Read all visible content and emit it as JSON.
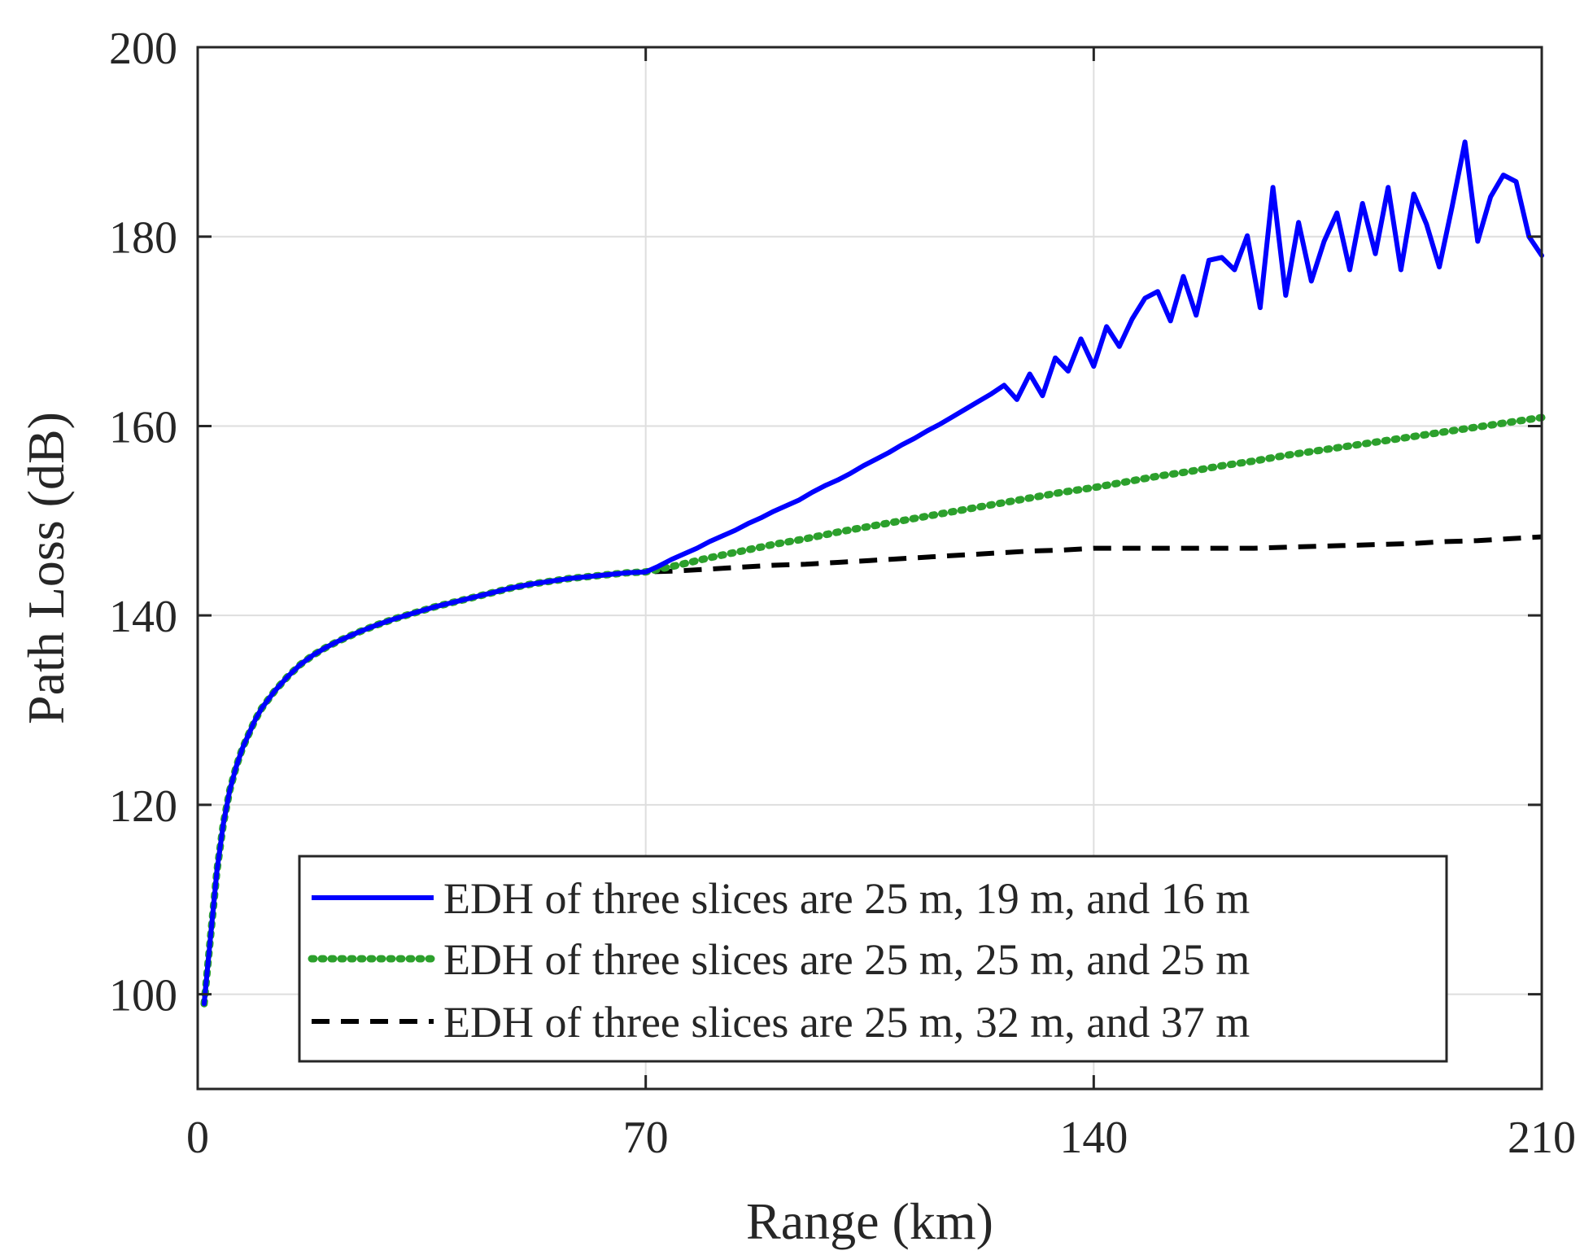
{
  "chart_data": {
    "type": "line",
    "xlabel": "Range (km)",
    "ylabel": "Path Loss (dB)",
    "xlim": [
      0,
      210
    ],
    "ylim": [
      90,
      200
    ],
    "xticks": [
      0,
      70,
      140,
      210
    ],
    "yticks": [
      100,
      120,
      140,
      160,
      180,
      200
    ],
    "xtick_labels": [
      "0",
      "70",
      "140",
      "210"
    ],
    "ytick_labels": [
      "100",
      "120",
      "140",
      "160",
      "180",
      "200"
    ],
    "grid": true,
    "legend_position": "bottom-right",
    "series": [
      {
        "name": "EDH of three slices are 25 m, 19 m, and 16 m",
        "color": "#0000ff",
        "style": "solid",
        "x": [
          1,
          2,
          3,
          4,
          5,
          6,
          7,
          8,
          9,
          10,
          12,
          14,
          16,
          18,
          20,
          22,
          25,
          28,
          31,
          34,
          37,
          40,
          43,
          46,
          49,
          52,
          55,
          58,
          61,
          64,
          67,
          70,
          72,
          74,
          76,
          78,
          80,
          82,
          84,
          86,
          88,
          90,
          92,
          94,
          96,
          98,
          100,
          102,
          104,
          106,
          108,
          110,
          112,
          114,
          116,
          118,
          120,
          122,
          124,
          126,
          128,
          130,
          132,
          134,
          136,
          138,
          140,
          142,
          144,
          146,
          148,
          150,
          152,
          154,
          156,
          158,
          160,
          162,
          164,
          166,
          168,
          170,
          172,
          174,
          176,
          178,
          180,
          182,
          184,
          186,
          188,
          190,
          192,
          194,
          196,
          198,
          200,
          202,
          204,
          206,
          208,
          210
        ],
        "y": [
          99,
          106,
          113,
          118,
          121.5,
          124,
          126,
          127.5,
          129,
          130.2,
          132,
          133.5,
          134.8,
          135.8,
          136.6,
          137.3,
          138.2,
          139,
          139.7,
          140.3,
          140.9,
          141.4,
          141.9,
          142.4,
          142.9,
          143.3,
          143.6,
          143.9,
          144.1,
          144.3,
          144.5,
          144.6,
          145.2,
          145.9,
          146.5,
          147.1,
          147.8,
          148.4,
          149,
          149.7,
          150.3,
          151,
          151.6,
          152.2,
          153,
          153.7,
          154.3,
          155,
          155.8,
          156.5,
          157.2,
          158,
          158.7,
          159.5,
          160.2,
          161,
          161.8,
          162.6,
          163.4,
          164.3,
          162.8,
          165.5,
          163.2,
          167.2,
          165.8,
          169.2,
          166.3,
          170.5,
          168.4,
          171.3,
          173.5,
          174.2,
          171.1,
          175.8,
          171.7,
          177.5,
          177.8,
          176.5,
          180.1,
          172.5,
          185.2,
          173.8,
          181.5,
          175.3,
          179.5,
          182.5,
          176.5,
          183.5,
          178.2,
          185.2,
          176.5,
          184.5,
          181.3,
          176.8,
          183.2,
          190,
          179.5,
          184.2,
          186.5,
          185.8,
          180,
          178
        ]
      },
      {
        "name": "EDH of three slices are 25 m, 25 m, and 25 m",
        "color": "#2ca02c",
        "style": "dotted",
        "x": [
          1,
          2,
          3,
          4,
          5,
          6,
          7,
          8,
          9,
          10,
          12,
          14,
          16,
          18,
          20,
          22,
          25,
          28,
          31,
          34,
          37,
          40,
          43,
          46,
          49,
          52,
          55,
          58,
          61,
          64,
          67,
          70,
          75,
          80,
          85,
          90,
          95,
          100,
          105,
          110,
          115,
          120,
          125,
          130,
          135,
          140,
          145,
          150,
          155,
          160,
          165,
          170,
          175,
          180,
          185,
          190,
          195,
          200,
          205,
          210
        ],
        "y": [
          99,
          106,
          113,
          118,
          121.5,
          124,
          126,
          127.5,
          129,
          130.2,
          132,
          133.5,
          134.8,
          135.8,
          136.6,
          137.3,
          138.2,
          139,
          139.7,
          140.3,
          140.9,
          141.4,
          141.9,
          142.4,
          142.9,
          143.3,
          143.6,
          143.9,
          144.1,
          144.3,
          144.5,
          144.6,
          145.3,
          146.1,
          146.8,
          147.5,
          148.1,
          148.8,
          149.4,
          150,
          150.6,
          151.2,
          151.8,
          152.4,
          153,
          153.5,
          154.1,
          154.7,
          155.2,
          155.8,
          156.3,
          156.9,
          157.4,
          157.9,
          158.4,
          158.9,
          159.4,
          159.9,
          160.4,
          160.9
        ]
      },
      {
        "name": "EDH of three slices are 25 m, 32 m, and 37 m",
        "color": "#000000",
        "style": "dashed",
        "x": [
          1,
          2,
          3,
          4,
          5,
          6,
          7,
          8,
          9,
          10,
          12,
          14,
          16,
          18,
          20,
          22,
          25,
          28,
          31,
          34,
          37,
          40,
          43,
          46,
          49,
          52,
          55,
          58,
          61,
          64,
          67,
          70,
          75,
          80,
          85,
          90,
          95,
          100,
          105,
          110,
          115,
          120,
          125,
          130,
          135,
          140,
          145,
          150,
          155,
          160,
          165,
          170,
          175,
          180,
          185,
          190,
          195,
          200,
          205,
          210
        ],
        "y": [
          99,
          106,
          113,
          118,
          121.5,
          124,
          126,
          127.5,
          129,
          130.2,
          132,
          133.5,
          134.8,
          135.8,
          136.6,
          137.3,
          138.2,
          139,
          139.7,
          140.3,
          140.9,
          141.4,
          141.9,
          142.4,
          142.9,
          143.3,
          143.6,
          143.9,
          144.1,
          144.3,
          144.5,
          144.6,
          144.7,
          144.9,
          145.1,
          145.3,
          145.4,
          145.6,
          145.8,
          146,
          146.2,
          146.4,
          146.6,
          146.8,
          146.9,
          147.1,
          147.1,
          147.1,
          147.1,
          147.1,
          147.1,
          147.2,
          147.3,
          147.4,
          147.5,
          147.6,
          147.8,
          147.9,
          148.1,
          148.3
        ]
      }
    ]
  }
}
